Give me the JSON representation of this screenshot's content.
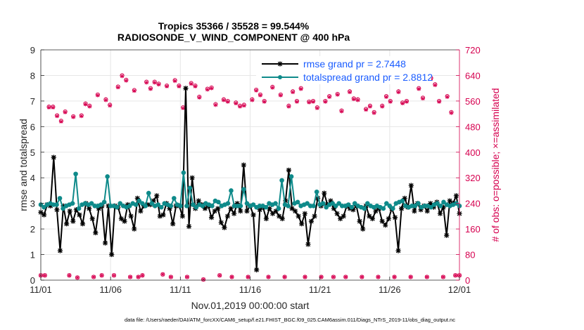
{
  "chart_data": {
    "type": "line",
    "title": "Tropics 35366 / 35528 = 99.544%",
    "subtitle": "RADIOSONDE_V_WIND_COMPONENT @ 400 hPa",
    "xlabel": "Nov.01,2019 00:00:00 start",
    "ylabel": "rmse and totalspread",
    "ylabel_right": "# of obs: o=possible; ×=assimilated",
    "footer": "data file: /Users/raeder/DAI/ATM_forcXX/CAM6_setup/f.e21.FHIST_BGC.f09_025.CAM6assim.011/Diags_NTrS_2019-11/obs_diag_output.nc",
    "xlim": [
      0,
      30
    ],
    "ylim": [
      0,
      9
    ],
    "ylim_right": [
      0,
      720
    ],
    "xticks": [
      0,
      5,
      10,
      15,
      20,
      25,
      30
    ],
    "xtick_labels": [
      "11/01",
      "11/06",
      "11/11",
      "11/16",
      "11/21",
      "11/26",
      "12/01"
    ],
    "yticks": [
      0,
      1,
      2,
      3,
      4,
      5,
      6,
      7,
      8,
      9
    ],
    "yticks_right": [
      0,
      80,
      160,
      240,
      320,
      400,
      480,
      560,
      640,
      720
    ],
    "series": [
      {
        "name": "rmse",
        "legend": "rmse grand pr = 2.7448",
        "color": "#000000",
        "marker": "asterisk",
        "values": [
          2.65,
          2.55,
          2.95,
          2.9,
          4.8,
          2.75,
          1.15,
          2.9,
          2.2,
          2.7,
          2.3,
          2.75,
          2.55,
          2.2,
          3.0,
          2.8,
          2.4,
          1.85,
          2.8,
          2.9,
          1.45,
          2.9,
          1.0,
          2.9,
          2.85,
          2.4,
          2.3,
          2.95,
          2.5,
          2.0,
          3.2,
          2.7,
          2.9,
          2.95,
          2.95,
          3.1,
          3.3,
          2.5,
          2.55,
          3.0,
          2.8,
          2.2,
          2.9,
          2.9,
          2.5,
          7.5,
          2.1,
          4.0,
          2.8,
          3.1,
          2.95,
          2.8,
          2.9,
          2.45,
          2.7,
          2.8,
          2.25,
          2.05,
          2.5,
          2.8,
          2.6,
          3.0,
          2.7,
          4.5,
          2.7,
          2.9,
          2.55,
          0.4,
          2.75,
          2.85,
          2.4,
          2.8,
          2.6,
          2.7,
          2.5,
          2.4,
          3.1,
          4.3,
          2.8,
          2.7,
          2.5,
          2.2,
          2.6,
          1.4,
          2.3,
          2.5,
          3.2,
          2.9,
          3.4,
          2.95,
          3.1,
          2.8,
          2.6,
          2.4,
          2.5,
          2.9,
          2.8,
          2.75,
          2.9,
          2.3,
          2.0,
          2.9,
          2.5,
          2.4,
          2.7,
          2.8,
          2.3,
          2.15,
          2.4,
          2.8,
          2.45,
          1.15,
          2.8,
          3.2,
          2.85,
          3.7,
          2.7,
          3.0,
          2.75,
          2.9,
          2.7,
          3.0,
          2.85,
          3.05,
          2.6,
          2.85,
          1.75,
          3.1,
          3.0,
          3.3,
          2.6
        ]
      },
      {
        "name": "totalspread",
        "legend": "totalspread grand pr = 2.8812",
        "color": "#0e8a8a",
        "marker": "circle",
        "values": [
          2.95,
          2.85,
          2.95,
          3.0,
          2.95,
          2.95,
          3.2,
          2.8,
          2.9,
          2.95,
          3.0,
          4.15,
          2.8,
          2.95,
          3.0,
          2.95,
          3.0,
          2.9,
          2.9,
          2.95,
          3.05,
          4.05,
          2.9,
          2.9,
          2.85,
          3.0,
          2.9,
          2.85,
          2.9,
          3.0,
          2.95,
          3.1,
          3.0,
          2.9,
          3.4,
          3.0,
          2.9,
          2.95,
          2.85,
          3.0,
          2.95,
          2.9,
          3.2,
          2.95,
          2.9,
          4.2,
          2.9,
          3.6,
          2.95,
          2.85,
          2.95,
          2.9,
          3.0,
          2.95,
          2.9,
          3.1,
          3.05,
          2.9,
          2.95,
          3.0,
          3.5,
          2.9,
          2.9,
          2.9,
          3.55,
          3.0,
          2.9,
          2.95,
          2.85,
          2.9,
          2.9,
          2.85,
          3.0,
          2.95,
          3.0,
          2.8,
          3.9,
          2.95,
          2.9,
          4.05,
          3.0,
          3.05,
          2.9,
          2.95,
          3.0,
          2.9,
          2.9,
          3.45,
          2.95,
          3.0,
          2.85,
          2.95,
          3.0,
          2.9,
          3.0,
          2.9,
          2.9,
          2.95,
          2.85,
          3.0,
          2.9,
          2.85,
          2.8,
          3.0,
          2.9,
          2.85,
          2.9,
          2.85,
          2.8,
          3.0,
          2.9,
          2.8,
          3.0,
          3.05,
          3.1,
          2.9,
          2.85,
          2.9,
          2.9,
          3.0,
          2.85,
          2.9,
          2.9,
          2.85,
          2.95,
          3.0,
          2.9,
          3.05,
          2.95,
          2.9,
          2.95,
          3.0,
          2.9
        ]
      },
      {
        "name": "obs possible",
        "color": "#d6004f",
        "marker": "o",
        "axis": "right",
        "values": [
          15,
          15,
          542,
          542,
          515,
          498,
          527,
          15,
          512,
          8,
          515,
          552,
          545,
          10,
          580,
          15,
          565,
          548,
          15,
          605,
          640,
          626,
          10,
          594,
          10,
          15,
          620,
          600,
          620,
          614,
          18,
          608,
          10,
          625,
          608,
          540,
          10,
          616,
          608,
          573,
          2,
          598,
          602,
          550,
          15,
          565,
          560,
          10,
          555,
          545,
          548,
          10,
          565,
          595,
          580,
          560,
          10,
          604,
          628,
          580,
          10,
          545,
          590,
          560,
          600,
          10,
          558,
          560,
          540,
          10,
          560,
          575,
          10,
          582,
          530,
          10,
          590,
          568,
          565,
          10,
          535,
          545,
          525,
          10,
          545,
          575,
          560,
          10,
          590,
          555,
          560,
          10,
          640,
          600,
          570,
          10,
          632,
          612,
          560,
          10,
          575,
          525,
          15,
          15
        ]
      },
      {
        "name": "obs assimilated",
        "color": "#d6004f",
        "marker": "x",
        "axis": "right",
        "values": [
          15,
          15,
          540,
          540,
          513,
          496,
          525,
          15,
          510,
          8,
          513,
          550,
          543,
          10,
          578,
          15,
          563,
          546,
          15,
          603,
          638,
          624,
          10,
          592,
          10,
          15,
          618,
          598,
          618,
          612,
          18,
          606,
          10,
          623,
          606,
          538,
          10,
          614,
          606,
          571,
          2,
          596,
          600,
          548,
          15,
          563,
          558,
          10,
          553,
          543,
          546,
          10,
          563,
          593,
          578,
          558,
          10,
          602,
          626,
          578,
          10,
          543,
          588,
          558,
          598,
          10,
          556,
          558,
          538,
          10,
          558,
          573,
          10,
          580,
          528,
          10,
          588,
          566,
          563,
          10,
          533,
          543,
          523,
          10,
          543,
          573,
          558,
          10,
          588,
          553,
          558,
          10,
          638,
          598,
          568,
          10,
          630,
          610,
          558,
          10,
          573,
          523,
          15,
          15
        ]
      }
    ]
  }
}
